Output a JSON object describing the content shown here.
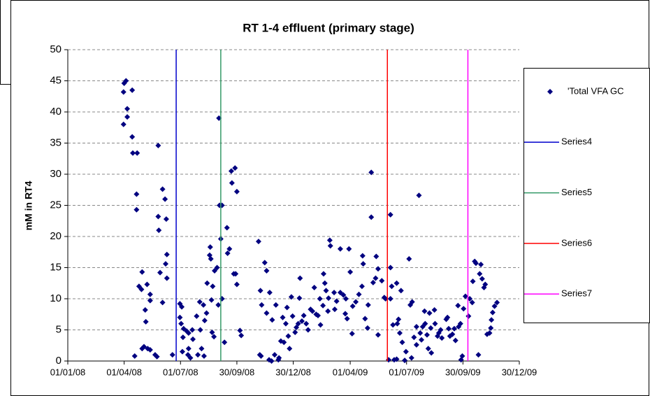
{
  "chart_data": {
    "type": "scatter",
    "title": "RT 1-4 effluent (primary stage)",
    "y_label": "mM in RT4",
    "xlim": [
      "2008-01-01",
      "2009-12-30"
    ],
    "xticks": [
      {
        "value": "2008-01-01",
        "label": "01/01/08"
      },
      {
        "value": "2008-04-01",
        "label": "01/04/08"
      },
      {
        "value": "2008-07-01",
        "label": "01/07/08"
      },
      {
        "value": "2008-09-30",
        "label": "30/09/08"
      },
      {
        "value": "2008-12-30",
        "label": "30/12/08"
      },
      {
        "value": "2009-04-01",
        "label": "01/04/09"
      },
      {
        "value": "2009-07-01",
        "label": "01/07/09"
      },
      {
        "value": "2009-09-30",
        "label": "30/09/09"
      },
      {
        "value": "2009-12-30",
        "label": "30/12/09"
      }
    ],
    "ylim": [
      0,
      50
    ],
    "yticks": [
      0,
      5,
      10,
      15,
      20,
      25,
      30,
      35,
      40,
      45,
      50
    ],
    "grid": true,
    "legend": "right",
    "series": [
      {
        "name": "'Total VFA GC",
        "color": "#000080",
        "mark": "diamond",
        "x": [
          "2008-03-31",
          "2008-03-31",
          "2008-04-01",
          "2008-04-04",
          "2008-04-06",
          "2008-04-06",
          "2008-04-14",
          "2008-04-14",
          "2008-04-15",
          "2008-04-22",
          "2008-04-21",
          "2008-04-21",
          "2008-04-18",
          "2008-04-25",
          "2008-04-29",
          "2008-04-30",
          "2008-04-30",
          "2008-05-03",
          "2008-05-05",
          "2008-05-06",
          "2008-05-08",
          "2008-05-13",
          "2008-05-13",
          "2008-05-13",
          "2008-05-09",
          "2008-05-21",
          "2008-05-24",
          "2008-05-26",
          "2008-05-26",
          "2008-05-27",
          "2008-05-29",
          "2008-06-02",
          "2008-06-02",
          "2008-06-06",
          "2008-06-07",
          "2008-06-09",
          "2008-06-08",
          "2008-06-09",
          "2008-06-18",
          "2008-06-30",
          "2008-07-03",
          "2008-06-30",
          "2008-07-02",
          "2008-07-06",
          "2008-07-11",
          "2008-07-05",
          "2008-07-04",
          "2008-07-14",
          "2008-07-13",
          "2008-07-17",
          "2008-07-20",
          "2008-07-21",
          "2008-07-14",
          "2008-07-27",
          "2008-08-01",
          "2008-08-07",
          "2008-08-02",
          "2008-08-04",
          "2008-07-29",
          "2008-08-08",
          "2008-08-09",
          "2008-08-12",
          "2008-08-17",
          "2008-08-18",
          "2008-08-19",
          "2008-08-13",
          "2008-08-20",
          "2008-08-21",
          "2008-08-24",
          "2008-08-25",
          "2008-08-22",
          "2008-09-01",
          "2008-09-02",
          "2008-09-06",
          "2008-09-04",
          "2008-08-29",
          "2008-08-31",
          "2008-09-06",
          "2008-09-10",
          "2008-09-14",
          "2008-09-15",
          "2008-09-18",
          "2008-09-21",
          "2008-09-27",
          "2008-09-22",
          "2008-09-30",
          "2008-09-28",
          "2008-09-30",
          "2008-10-05",
          "2008-10-07",
          "2008-09-25",
          "2008-11-04",
          "2008-11-07",
          "2008-11-14",
          "2008-11-17",
          "2008-11-09",
          "2008-11-06",
          "2008-11-08",
          "2008-11-17",
          "2008-11-21",
          "2008-11-25",
          "2008-11-30",
          "2008-12-06",
          "2008-12-07",
          "2008-11-22",
          "2008-11-26",
          "2008-12-02",
          "2008-12-10",
          "2008-12-15",
          "2008-12-13",
          "2008-12-18",
          "2008-12-20",
          "2008-12-22",
          "2008-12-24",
          "2008-12-27",
          "2008-12-29",
          "2009-01-04",
          "2009-01-07",
          "2009-01-02",
          "2009-01-09",
          "2009-01-10",
          "2009-01-13",
          "2009-01-16",
          "2009-01-20",
          "2009-01-23",
          "2009-01-27",
          "2009-01-30",
          "2009-02-02",
          "2009-02-05",
          "2009-02-08",
          "2009-02-11",
          "2009-02-16",
          "2009-02-12",
          "2009-02-17",
          "2009-02-19",
          "2009-02-21",
          "2009-02-24",
          "2009-02-27",
          "2009-02-28",
          "2009-02-25",
          "2009-03-06",
          "2009-03-07",
          "2009-03-10",
          "2009-03-16",
          "2009-03-16",
          "2009-03-21",
          "2009-03-24",
          "2009-03-27",
          "2009-03-25",
          "2009-04-01",
          "2009-03-30",
          "2009-04-04",
          "2009-04-05",
          "2009-04-10",
          "2009-04-15",
          "2009-04-21",
          "2009-04-20",
          "2009-04-22",
          "2009-04-25",
          "2009-04-29",
          "2009-04-30",
          "2009-05-05",
          "2009-05-05",
          "2009-05-08",
          "2009-05-12",
          "2009-05-13",
          "2009-05-16",
          "2009-05-16",
          "2009-05-22",
          "2009-05-26",
          "2009-05-28",
          "2009-06-02",
          "2009-06-05",
          "2009-06-05",
          "2009-06-05",
          "2009-06-07",
          "2009-06-09",
          "2009-06-11",
          "2009-06-15",
          "2009-06-18",
          "2009-06-16",
          "2009-06-15",
          "2009-06-20",
          "2009-06-22",
          "2009-06-24",
          "2009-06-28",
          "2009-06-30",
          "2009-07-05",
          "2009-07-07",
          "2009-07-10",
          "2009-07-13",
          "2009-07-09",
          "2009-07-17",
          "2009-07-17",
          "2009-07-21",
          "2009-07-23",
          "2009-07-25",
          "2009-07-27",
          "2009-07-30",
          "2009-07-31",
          "2009-08-03",
          "2009-08-05",
          "2009-08-07",
          "2009-08-09",
          "2009-08-10",
          "2009-08-15",
          "2009-08-16",
          "2009-08-20",
          "2009-08-22",
          "2009-08-25",
          "2009-08-27",
          "2009-09-03",
          "2009-09-07",
          "2009-09-09",
          "2009-09-05",
          "2009-09-13",
          "2009-09-16",
          "2009-09-22",
          "2009-09-18",
          "2009-09-23",
          "2009-09-26",
          "2009-09-27",
          "2009-09-29",
          "2009-10-01",
          "2009-10-04",
          "2009-10-09",
          "2009-10-11",
          "2009-10-15",
          "2009-10-16",
          "2009-10-19",
          "2009-10-21",
          "2009-10-25",
          "2009-10-27",
          "2009-10-29",
          "2009-10-31",
          "2009-11-03",
          "2009-11-05",
          "2009-11-08",
          "2009-11-12",
          "2009-11-14",
          "2009-11-15",
          "2009-11-20",
          "2009-11-24",
          "2009-11-17"
        ],
        "values": [
          38,
          43.2,
          44.6,
          45,
          40.5,
          39.2,
          43.5,
          36,
          33.4,
          33.4,
          26.8,
          24.3,
          0.8,
          12,
          11.5,
          14.3,
          2,
          2.3,
          8.2,
          6.3,
          12.3,
          10.7,
          9.7,
          1.8,
          2,
          1,
          0.7,
          34.6,
          23.2,
          21,
          14.2,
          27.6,
          9.4,
          26,
          15.6,
          17.1,
          22.8,
          13.3,
          1,
          9.2,
          8.7,
          7,
          6,
          5.2,
          4.8,
          3.8,
          1.5,
          4.5,
          1,
          0.5,
          5,
          3.5,
          2,
          7.2,
          9.5,
          9,
          5,
          2,
          1,
          0.8,
          6.5,
          7.7,
          17,
          18.3,
          16.4,
          12.5,
          9.8,
          4.6,
          3.9,
          14.5,
          12,
          39,
          25,
          25,
          19.6,
          15,
          9,
          10,
          3,
          21.4,
          17.3,
          18,
          30.5,
          31,
          28.6,
          27.2,
          14,
          12.3,
          4.9,
          4.1,
          14,
          19.2,
          11.3,
          15.8,
          14.5,
          9,
          1,
          0.8,
          7.7,
          0.2,
          0,
          1,
          0.2,
          0.5,
          11,
          6.6,
          9,
          3.2,
          3,
          7,
          6,
          8.6,
          4,
          2,
          10.3,
          7.2,
          5.4,
          6,
          4.6,
          10.1,
          13.3,
          6.4,
          7.3,
          6,
          5,
          8.3,
          8,
          11.8,
          7.5,
          7.3,
          10,
          8.9,
          5.8,
          14,
          12.5,
          11.3,
          8,
          19.4,
          18.5,
          10.1,
          11,
          8.3,
          9.6,
          18,
          11,
          10.6,
          7.6,
          6.8,
          10,
          14.3,
          18,
          4.4,
          8.8,
          9.5,
          10.7,
          16.9,
          12,
          15.6,
          6.8,
          5.3,
          9,
          30.3,
          23.1,
          12.6,
          13.3,
          16.8,
          4.2,
          14.8,
          12.9,
          10.2,
          10,
          0.2,
          23.5,
          15,
          10,
          12,
          5.8,
          0.2,
          0.3,
          6.7,
          6,
          12.5,
          4.5,
          11.3,
          3,
          0.1,
          1.5,
          16.4,
          9,
          9.5,
          3.8,
          0.5,
          2.6,
          5.5,
          26.6,
          4.5,
          3.4,
          5.5,
          8,
          6,
          4.2,
          2,
          7.7,
          5.3,
          1.3,
          8.2,
          6,
          4,
          4.5,
          5,
          3.7,
          6.7,
          5.2,
          4,
          7,
          4.3,
          5.2,
          8.9,
          3.3,
          5.5,
          6,
          0.2,
          0.8,
          8.4,
          10.4,
          7.2,
          10,
          9.4,
          12.8,
          16,
          15.7,
          1,
          14,
          15.5,
          13.2,
          11.8,
          12.3,
          4.3,
          4.5,
          5.3,
          6.6,
          8.8,
          9.4,
          7.8
        ]
      },
      {
        "name": "Series4",
        "color": "#0000cc",
        "mark": "line",
        "x": [
          "2008-06-24",
          "2008-06-24"
        ],
        "values": [
          0,
          50
        ]
      },
      {
        "name": "Series5",
        "color": "#339966",
        "mark": "line",
        "x": [
          "2008-09-04",
          "2008-09-04"
        ],
        "values": [
          0,
          50
        ]
      },
      {
        "name": "Series6",
        "color": "#ff0000",
        "mark": "line",
        "x": [
          "2009-05-31",
          "2009-05-31"
        ],
        "values": [
          0,
          50
        ]
      },
      {
        "name": "Series7",
        "color": "#ff00ff",
        "mark": "line",
        "x": [
          "2009-10-08",
          "2009-10-08"
        ],
        "values": [
          0,
          50
        ]
      }
    ]
  }
}
